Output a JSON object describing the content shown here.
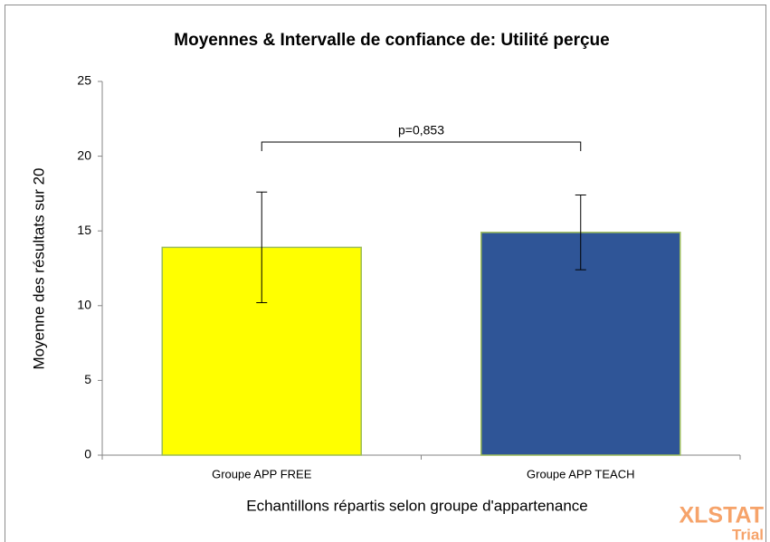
{
  "chart_data": {
    "type": "bar",
    "title": "Moyennes & Intervalle de confiance de: Utilité perçue",
    "x_label": "Echantillons répartis selon groupe d'appartenance",
    "y_label": "Moyenne des résultats sur 20",
    "categories": [
      "Groupe APP FREE",
      "Groupe APP TEACH"
    ],
    "values": [
      13.9,
      14.9
    ],
    "errors": [
      3.7,
      2.5
    ],
    "colors": [
      "#ffff00",
      "#2f5597"
    ],
    "annotation": "p=0,853",
    "watermark": [
      "XLSTAT",
      "Trial"
    ],
    "ylim": [
      0,
      25
    ],
    "yticks": [
      0,
      5,
      10,
      15,
      20,
      25
    ],
    "grid": false
  }
}
